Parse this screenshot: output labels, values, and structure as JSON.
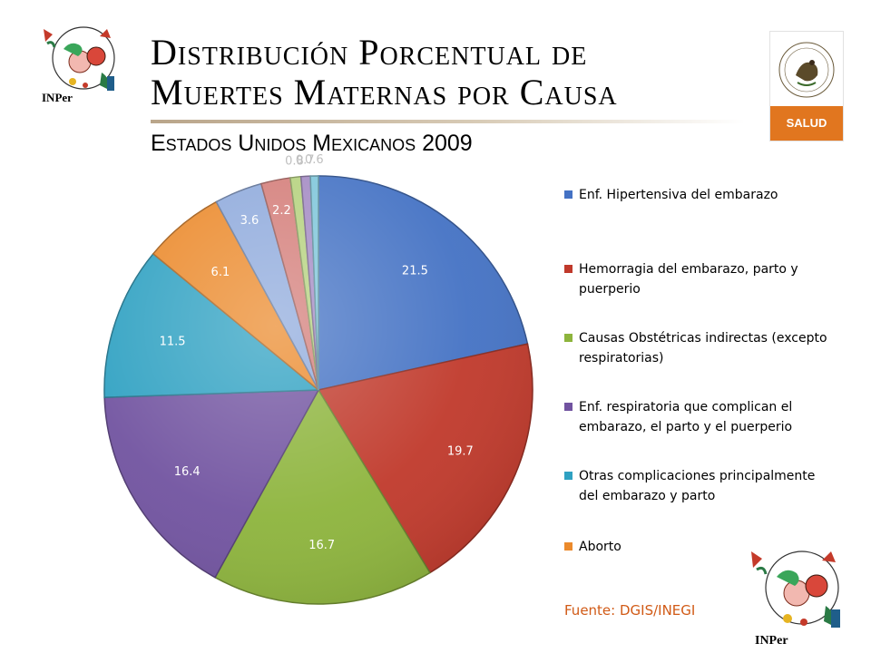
{
  "header": {
    "title_line1": "Distribución Porcentual de",
    "title_line2": "Muertes Maternas por Causa",
    "subtitle": "Estados Unidos Mexicanos 2009"
  },
  "logos": {
    "inper_text": "INPer",
    "salud_text": "SALUD"
  },
  "source": "Fuente: DGIS/INEGI",
  "chart_data": {
    "type": "pie",
    "slices": [
      {
        "label": "Enf. Hipertensiva del embarazo",
        "value": 21.5,
        "color": "#4472C4",
        "value_label": "21.5"
      },
      {
        "label": "Hemorragia del embarazo, parto y puerperio",
        "value": 19.7,
        "color": "#C0392B",
        "value_label": "19.7"
      },
      {
        "label": "Causas Obstétricas indirectas (excepto respiratorias)",
        "value": 16.7,
        "color": "#8DB43C",
        "value_label": "16.7"
      },
      {
        "label": "Enf. respiratoria que complican el embarazo, el parto y el puerperio",
        "value": 16.4,
        "color": "#7153A0",
        "value_label": "16.4"
      },
      {
        "label": "Otras complicaciones principalmente del embarazo y parto",
        "value": 11.5,
        "color": "#2FA1C2",
        "value_label": "11.5"
      },
      {
        "label": "Aborto",
        "value": 6.1,
        "color": "#EB8A2C",
        "value_label": "6.1"
      },
      {
        "label": "",
        "value": 3.6,
        "color": "#8FAADC",
        "value_label": "3.6"
      },
      {
        "label": "",
        "value": 2.2,
        "color": "#D47E7A",
        "value_label": "2.2"
      },
      {
        "label": "",
        "value": 0.8,
        "color": "#B5D27E",
        "value_label": "0.8"
      },
      {
        "label": "",
        "value": 0.7,
        "color": "#A48BC4",
        "value_label": "0.7"
      },
      {
        "label": "",
        "value": 0.6,
        "color": "#7FC6DA",
        "value_label": "0.6"
      }
    ],
    "legend_position": "right"
  }
}
